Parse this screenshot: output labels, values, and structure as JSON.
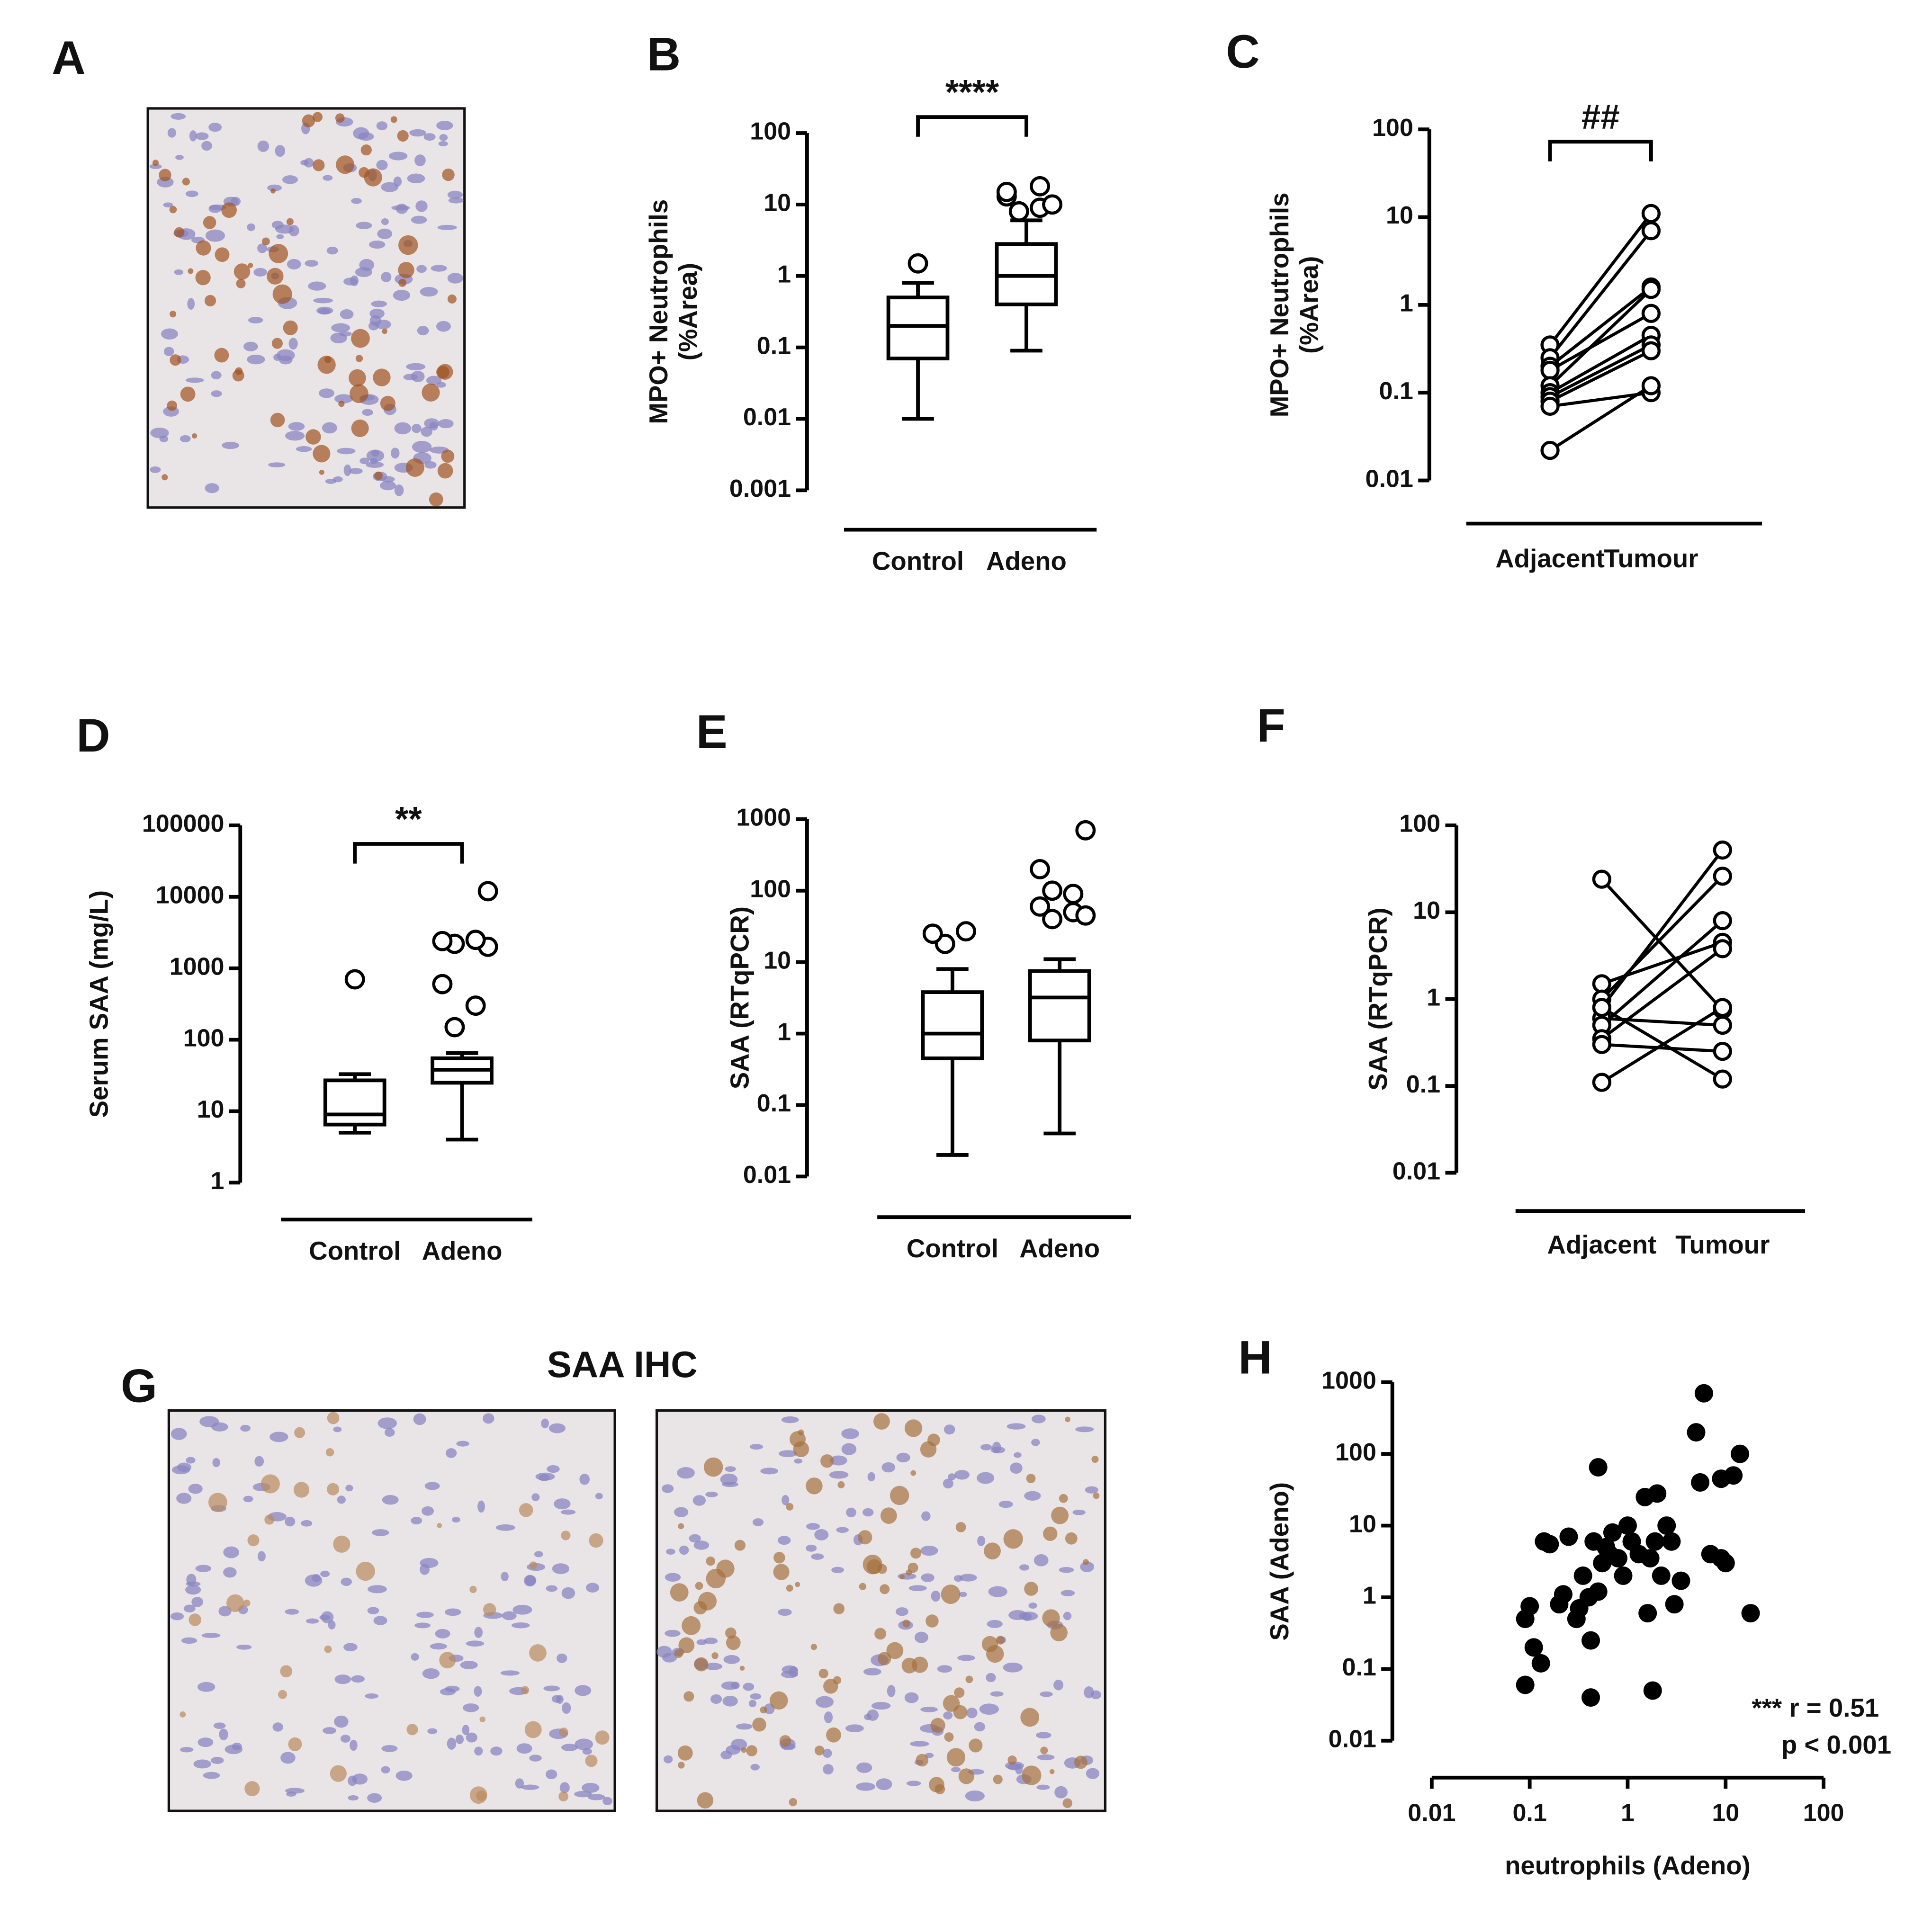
{
  "images": [
    {
      "label": "A"
    },
    {
      "label": "G",
      "title": "SAA IHC"
    }
  ],
  "chart_data": [
    {
      "type": "box",
      "label": "B",
      "ylabel": [
        "MPO+ Neutrophils",
        "(%Area)"
      ],
      "categories": [
        "Control",
        "Adeno"
      ],
      "log_y": true,
      "ylim": [
        0.001,
        100
      ],
      "yticks": [
        0.001,
        0.01,
        0.1,
        1,
        10,
        100
      ],
      "color": "#000000",
      "significance": "****",
      "boxes": [
        {
          "min": 0.01,
          "q1": 0.07,
          "median": 0.2,
          "q3": 0.5,
          "max": 0.8,
          "outliers": [
            1.5
          ]
        },
        {
          "min": 0.09,
          "q1": 0.4,
          "median": 1,
          "q3": 2.8,
          "max": 6,
          "outliers": [
            8,
            9,
            13,
            10,
            8,
            18,
            15
          ]
        }
      ]
    },
    {
      "type": "paired",
      "label": "C",
      "ylabel": [
        "MPO+ Neutrophils",
        "(%Area)"
      ],
      "categories": [
        "Adjacent",
        "Tumour"
      ],
      "log_y": true,
      "ylim": [
        0.01,
        100
      ],
      "yticks": [
        0.01,
        0.1,
        1,
        10,
        100
      ],
      "color": "#000000",
      "significance": "##",
      "series": [
        {
          "values": [
            0.35,
            11
          ]
        },
        {
          "values": [
            0.25,
            7
          ]
        },
        {
          "values": [
            0.2,
            1.6
          ]
        },
        {
          "values": [
            0.18,
            0.8
          ]
        },
        {
          "values": [
            0.12,
            1.5
          ]
        },
        {
          "values": [
            0.1,
            0.45
          ]
        },
        {
          "values": [
            0.09,
            0.35
          ]
        },
        {
          "values": [
            0.08,
            0.3
          ]
        },
        {
          "values": [
            0.07,
            0.1
          ]
        },
        {
          "values": [
            0.022,
            0.12
          ]
        }
      ]
    },
    {
      "type": "box",
      "label": "D",
      "ylabel": [
        "Serum SAA (mg/L)"
      ],
      "categories": [
        "Control",
        "Adeno"
      ],
      "log_y": true,
      "ylim": [
        1,
        100000
      ],
      "yticks": [
        1,
        10,
        100,
        1000,
        10000,
        100000
      ],
      "color": "#000000",
      "significance": "**",
      "boxes": [
        {
          "min": 5,
          "q1": 6.5,
          "median": 9,
          "q3": 27,
          "max": 33,
          "outliers": [
            700
          ]
        },
        {
          "min": 4,
          "q1": 25,
          "median": 38,
          "q3": 55,
          "max": 65,
          "outliers": [
            150,
            300,
            600,
            2000,
            2200,
            2500,
            2400,
            12000
          ]
        }
      ]
    },
    {
      "type": "box",
      "label": "E",
      "ylabel": [
        "SAA (RTqPCR)"
      ],
      "categories": [
        "Control",
        "Adeno"
      ],
      "log_y": true,
      "ylim": [
        0.01,
        1000
      ],
      "yticks": [
        0.01,
        0.1,
        1,
        10,
        100,
        1000
      ],
      "color": "#000000",
      "boxes": [
        {
          "min": 0.02,
          "q1": 0.45,
          "median": 1,
          "q3": 3.8,
          "max": 8,
          "outliers": [
            18,
            27,
            25
          ]
        },
        {
          "min": 0.04,
          "q1": 0.8,
          "median": 3.2,
          "q3": 7.5,
          "max": 11,
          "outliers": [
            40,
            50,
            60,
            45,
            100,
            90,
            200,
            700
          ]
        }
      ]
    },
    {
      "type": "paired",
      "label": "F",
      "ylabel": [
        "SAA (RTqPCR)"
      ],
      "categories": [
        "Adjacent",
        "Tumour"
      ],
      "log_y": true,
      "ylim": [
        0.01,
        100
      ],
      "yticks": [
        0.01,
        0.1,
        1,
        10,
        100
      ],
      "color": "#000000",
      "series": [
        {
          "values": [
            24,
            0.75
          ]
        },
        {
          "values": [
            1.5,
            4.5
          ]
        },
        {
          "values": [
            1,
            26
          ]
        },
        {
          "values": [
            0.8,
            52
          ]
        },
        {
          "values": [
            0.6,
            0.5
          ]
        },
        {
          "values": [
            0.5,
            8
          ]
        },
        {
          "values": [
            0.35,
            3.8
          ]
        },
        {
          "values": [
            0.3,
            0.25
          ]
        },
        {
          "values": [
            0.8,
            0.12
          ]
        },
        {
          "values": [
            0.11,
            0.8
          ]
        }
      ]
    },
    {
      "type": "scatter",
      "label": "H",
      "xlabel": "neutrophils (Adeno)",
      "ylabel": [
        "SAA (Adeno)"
      ],
      "log_x": true,
      "log_y": true,
      "xlim": [
        0.01,
        100
      ],
      "ylim": [
        0.01,
        1000
      ],
      "xticks": [
        0.01,
        0.1,
        1,
        10,
        100
      ],
      "yticks": [
        0.01,
        0.1,
        1,
        10,
        100,
        1000
      ],
      "color": "#000000",
      "annotations": [
        "*** r = 0.51",
        "p < 0.001"
      ],
      "x": [
        0.09,
        0.09,
        0.1,
        0.11,
        0.13,
        0.14,
        0.16,
        0.2,
        0.22,
        0.25,
        0.3,
        0.32,
        0.35,
        0.4,
        0.42,
        0.42,
        0.45,
        0.5,
        0.5,
        0.55,
        0.6,
        0.65,
        0.7,
        0.8,
        0.9,
        1,
        1.1,
        1.3,
        1.5,
        1.6,
        1.7,
        1.8,
        1.9,
        2,
        2.2,
        2.5,
        2.8,
        3,
        3.5,
        5,
        5.5,
        6,
        7,
        9,
        9,
        10,
        12,
        14,
        18
      ],
      "y": [
        0.06,
        0.5,
        0.75,
        0.2,
        0.12,
        6,
        5.5,
        0.8,
        1.1,
        7,
        0.5,
        0.7,
        2,
        1,
        0.25,
        0.04,
        6,
        65,
        1.2,
        3,
        5,
        4,
        8,
        3.5,
        2,
        10,
        6,
        4,
        25,
        0.6,
        3.5,
        0.05,
        6,
        28,
        2,
        10,
        6,
        0.8,
        1.7,
        200,
        40,
        700,
        4,
        45,
        3.5,
        3,
        50,
        100,
        0.6
      ]
    }
  ]
}
